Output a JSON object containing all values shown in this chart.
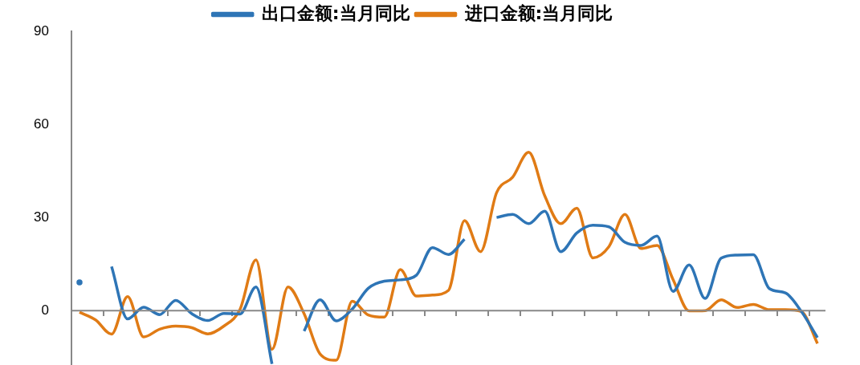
{
  "chart_data": {
    "type": "line",
    "tick_labels": "y",
    "legend": "top",
    "grid": false,
    "categories": [
      null,
      null,
      null,
      null,
      null,
      null,
      null,
      null,
      null,
      null,
      null,
      null,
      null,
      null,
      null,
      null,
      null,
      null,
      null,
      null,
      null,
      null,
      null,
      null,
      null,
      null,
      null,
      null,
      null,
      null,
      null,
      null,
      null,
      null,
      null,
      null,
      null,
      null,
      null,
      null,
      null,
      null,
      null,
      null,
      null,
      null,
      null
    ],
    "ylim": [
      -18,
      90
    ],
    "ref_lines": [
      {
        "axis": "y",
        "value": 0,
        "color": "#888888"
      }
    ],
    "yticks": [
      0,
      30,
      60,
      90
    ],
    "series": [
      {
        "name": "出口金额:当月同比",
        "color": "#2e75b6",
        "values": [
          9.1,
          null,
          14.2,
          -2.7,
          1.1,
          -1.3,
          3.3,
          -1.0,
          -3.2,
          -0.9,
          -1.1,
          7.6,
          -17.2,
          null,
          -6.6,
          3.5,
          -3.3,
          0.5,
          7.2,
          9.5,
          9.9,
          11.4,
          20.3,
          18.1,
          23,
          null,
          30,
          31,
          28,
          32,
          19,
          25,
          27.5,
          27,
          22,
          21,
          24,
          6.2,
          14.7,
          3.9,
          16.9,
          17.9,
          18.0,
          7.1,
          5.7,
          -0.3,
          -8.7
        ]
      },
      {
        "name": "进口金额:当月同比",
        "color": "#e07b15",
        "values": [
          -0.5,
          -3,
          -7.6,
          4.5,
          -8.5,
          -6,
          -5,
          -5.5,
          -7.5,
          -5,
          0.3,
          16.3,
          -12.5,
          7.6,
          -1,
          -14,
          -16,
          3,
          -1.4,
          -2.1,
          13.2,
          4.7,
          5,
          6.5,
          29,
          19,
          38,
          43,
          51,
          37,
          28,
          33,
          17,
          20.6,
          31,
          20,
          21,
          10,
          -0.1,
          0,
          3.5,
          1,
          2,
          0.3,
          0.3,
          -0.3,
          -10.6
        ]
      }
    ]
  }
}
